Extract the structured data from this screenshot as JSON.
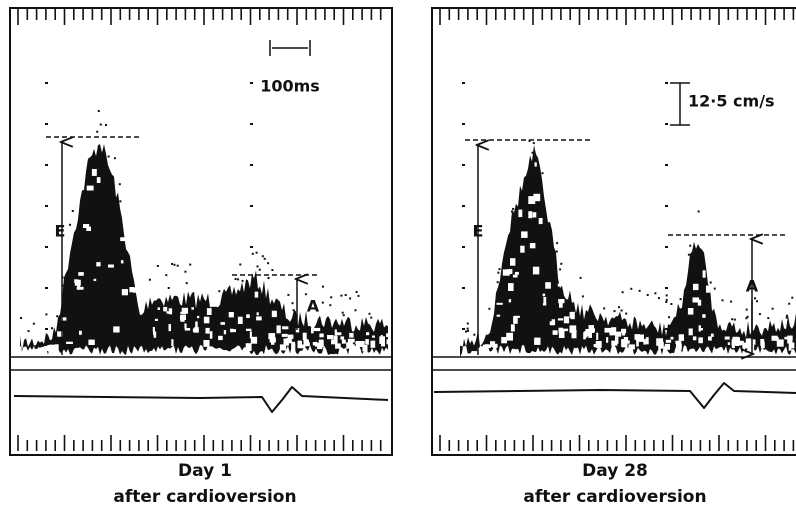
{
  "panels": [
    {
      "e_label": "E",
      "a_label": "A",
      "scale_label": "100ms",
      "caption": {
        "title": "Day 1",
        "subtitle": "after cardioversion"
      }
    },
    {
      "e_label": "E",
      "a_label": "A",
      "scale_label": "12·5 cm/s",
      "caption": {
        "title": "Day 28",
        "subtitle": "after cardioversion"
      }
    }
  ]
}
